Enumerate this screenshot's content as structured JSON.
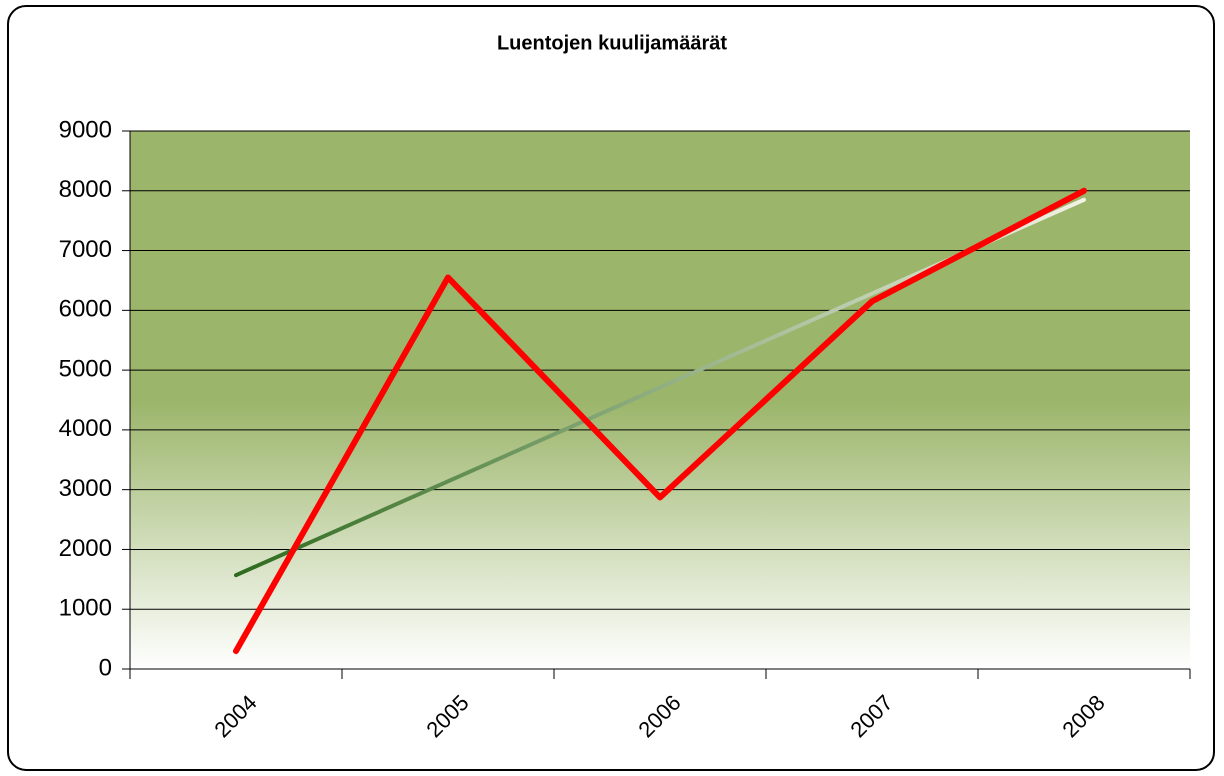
{
  "chart_data": {
    "type": "line",
    "title": "Luentojen kuulijamäärät",
    "categories": [
      "2004",
      "2005",
      "2006",
      "2007",
      "2008"
    ],
    "series": [
      {
        "color": "#ff0000",
        "values": [
          300,
          6550,
          2870,
          6150,
          8000
        ]
      },
      {
        "gradient": [
          "#2e6b1e",
          "#f2f2e6"
        ],
        "values": [
          1570,
          3140,
          4710,
          6280,
          7850
        ]
      }
    ],
    "ylim": [
      0,
      9000
    ],
    "yticks": [
      0,
      1000,
      2000,
      3000,
      4000,
      5000,
      6000,
      7000,
      8000,
      9000
    ],
    "grid": true
  }
}
